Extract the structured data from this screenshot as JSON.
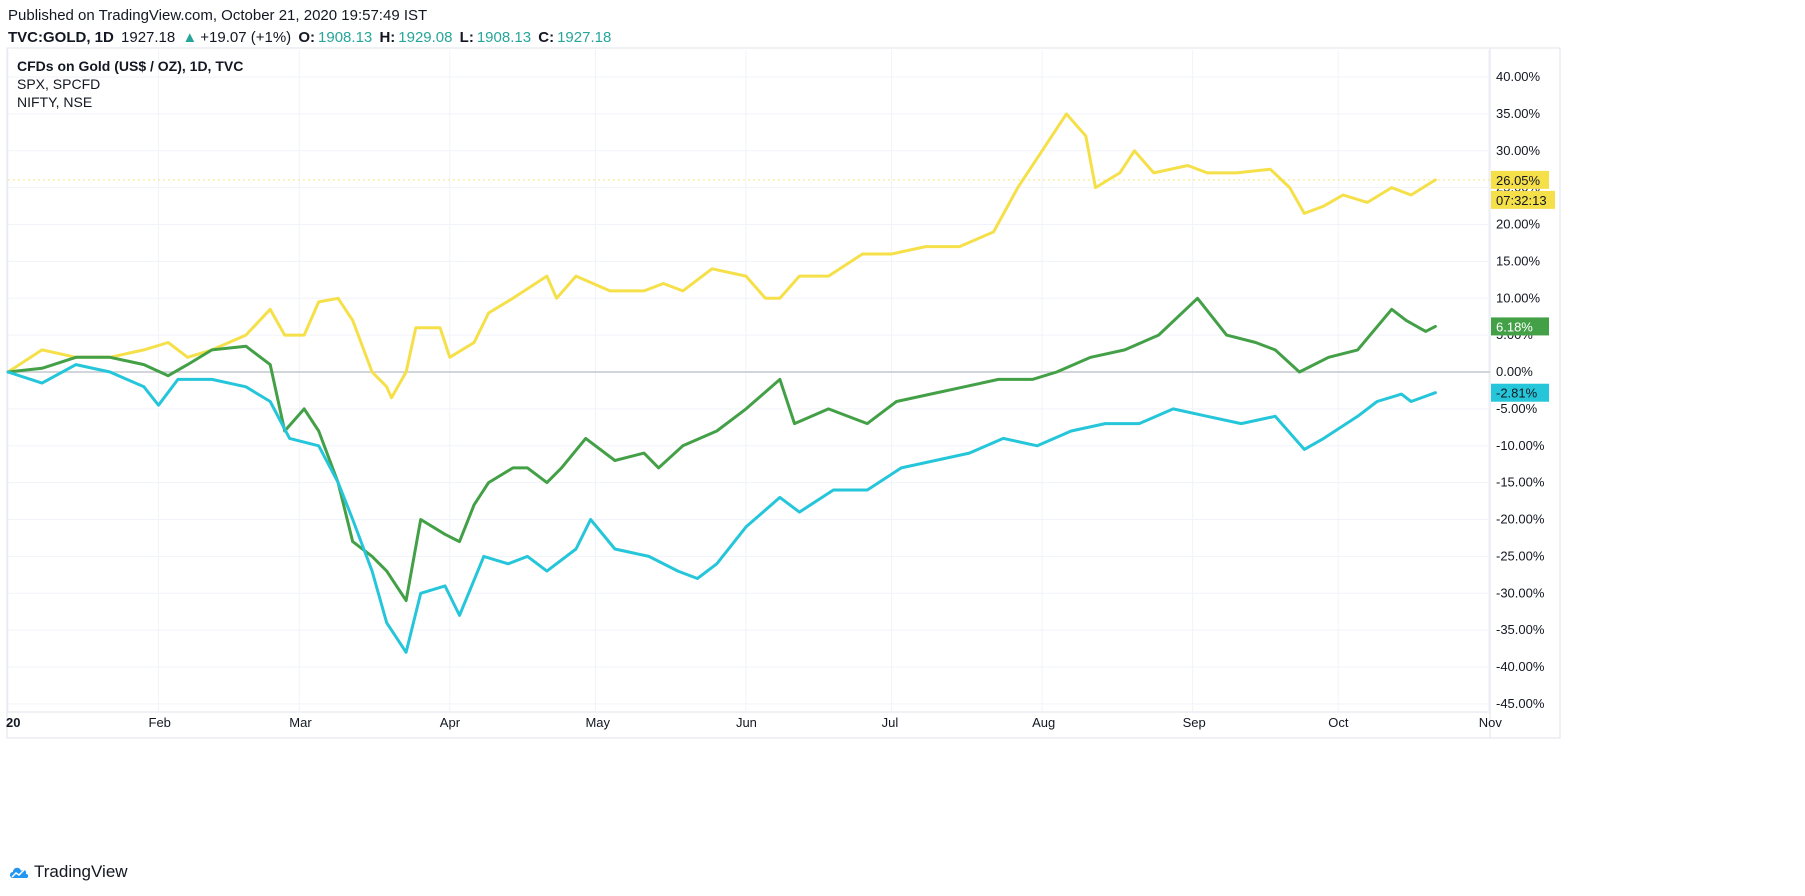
{
  "header": {
    "published": "Published on TradingView.com, October 21, 2020 19:57:49 IST",
    "symbol": "TVC:GOLD, 1D",
    "last": "1927.18",
    "change_arrow": "▲",
    "change": "+19.07 (+1%)",
    "o_label": "O:",
    "o_value": "1908.13",
    "h_label": "H:",
    "h_value": "1929.08",
    "l_label": "L:",
    "l_value": "1908.13",
    "c_label": "C:",
    "c_value": "1927.18"
  },
  "legend": {
    "main": "CFDs on Gold (US$ / OZ), 1D, TVC",
    "line2": "SPX, SPCFD",
    "line3": "NIFTY, NSE"
  },
  "footer": {
    "brand": "TradingView"
  },
  "colors": {
    "gold": "#f5e04a",
    "spx": "#43a047",
    "nifty": "#26c6da",
    "grid": "#f0f3fa",
    "zero": "#c4c8d1",
    "axis_text": "#131722"
  },
  "chart_data": {
    "type": "line",
    "y_unit": "%",
    "ylim": [
      -45,
      40
    ],
    "y_ticks": [
      "40.00%",
      "35.00%",
      "30.00%",
      "25.00%",
      "20.00%",
      "15.00%",
      "10.00%",
      "5.00%",
      "0.00%",
      "-5.00%",
      "-10.00%",
      "-15.00%",
      "-20.00%",
      "-25.00%",
      "-30.00%",
      "-35.00%",
      "-40.00%",
      "-45.00%"
    ],
    "x_ticks": [
      "20",
      "Feb",
      "Mar",
      "Apr",
      "May",
      "Jun",
      "Jul",
      "Aug",
      "Sep",
      "Oct",
      "Nov"
    ],
    "grid": true,
    "series": [
      {
        "name": "CFDs on Gold (US$ / OZ), 1D, TVC",
        "color": "#f5e04a",
        "last_label": "26.05%",
        "countdown": "07:32:13",
        "points": [
          [
            "2020-01-01",
            0
          ],
          [
            "2020-01-08",
            3
          ],
          [
            "2020-01-15",
            2
          ],
          [
            "2020-01-22",
            2
          ],
          [
            "2020-01-29",
            3
          ],
          [
            "2020-02-03",
            4
          ],
          [
            "2020-02-07",
            2
          ],
          [
            "2020-02-12",
            3
          ],
          [
            "2020-02-19",
            5
          ],
          [
            "2020-02-24",
            8.5
          ],
          [
            "2020-02-27",
            5
          ],
          [
            "2020-03-02",
            5
          ],
          [
            "2020-03-05",
            9.5
          ],
          [
            "2020-03-09",
            10
          ],
          [
            "2020-03-12",
            7
          ],
          [
            "2020-03-16",
            0
          ],
          [
            "2020-03-19",
            -2
          ],
          [
            "2020-03-20",
            -3.5
          ],
          [
            "2020-03-23",
            0
          ],
          [
            "2020-03-25",
            6
          ],
          [
            "2020-03-30",
            6
          ],
          [
            "2020-04-01",
            2
          ],
          [
            "2020-04-06",
            4
          ],
          [
            "2020-04-09",
            8
          ],
          [
            "2020-04-14",
            10
          ],
          [
            "2020-04-21",
            13
          ],
          [
            "2020-04-23",
            10
          ],
          [
            "2020-04-27",
            13
          ],
          [
            "2020-05-04",
            11
          ],
          [
            "2020-05-11",
            11
          ],
          [
            "2020-05-15",
            12
          ],
          [
            "2020-05-19",
            11
          ],
          [
            "2020-05-25",
            14
          ],
          [
            "2020-06-01",
            13
          ],
          [
            "2020-06-05",
            10
          ],
          [
            "2020-06-08",
            10
          ],
          [
            "2020-06-12",
            13
          ],
          [
            "2020-06-18",
            13
          ],
          [
            "2020-06-25",
            16
          ],
          [
            "2020-07-01",
            16
          ],
          [
            "2020-07-08",
            17
          ],
          [
            "2020-07-15",
            17
          ],
          [
            "2020-07-22",
            19
          ],
          [
            "2020-07-27",
            25
          ],
          [
            "2020-07-31",
            29
          ],
          [
            "2020-08-06",
            35
          ],
          [
            "2020-08-10",
            32
          ],
          [
            "2020-08-12",
            25
          ],
          [
            "2020-08-17",
            27
          ],
          [
            "2020-08-20",
            30
          ],
          [
            "2020-08-24",
            27
          ],
          [
            "2020-08-31",
            28
          ],
          [
            "2020-09-04",
            27
          ],
          [
            "2020-09-10",
            27
          ],
          [
            "2020-09-17",
            27.5
          ],
          [
            "2020-09-21",
            25
          ],
          [
            "2020-09-24",
            21.5
          ],
          [
            "2020-09-28",
            22.5
          ],
          [
            "2020-10-02",
            24
          ],
          [
            "2020-10-07",
            23
          ],
          [
            "2020-10-12",
            25
          ],
          [
            "2020-10-16",
            24
          ],
          [
            "2020-10-21",
            26.05
          ]
        ]
      },
      {
        "name": "SPX, SPCFD",
        "color": "#43a047",
        "last_label": "6.18%",
        "points": [
          [
            "2020-01-01",
            0
          ],
          [
            "2020-01-08",
            0.5
          ],
          [
            "2020-01-15",
            2
          ],
          [
            "2020-01-22",
            2
          ],
          [
            "2020-01-29",
            1
          ],
          [
            "2020-02-03",
            -0.5
          ],
          [
            "2020-02-07",
            1
          ],
          [
            "2020-02-12",
            3
          ],
          [
            "2020-02-19",
            3.5
          ],
          [
            "2020-02-24",
            1
          ],
          [
            "2020-02-27",
            -8
          ],
          [
            "2020-03-02",
            -5
          ],
          [
            "2020-03-05",
            -8
          ],
          [
            "2020-03-09",
            -15
          ],
          [
            "2020-03-12",
            -23
          ],
          [
            "2020-03-16",
            -25
          ],
          [
            "2020-03-19",
            -27
          ],
          [
            "2020-03-23",
            -31
          ],
          [
            "2020-03-26",
            -20
          ],
          [
            "2020-03-31",
            -22
          ],
          [
            "2020-04-03",
            -23
          ],
          [
            "2020-04-06",
            -18
          ],
          [
            "2020-04-09",
            -15
          ],
          [
            "2020-04-14",
            -13
          ],
          [
            "2020-04-17",
            -13
          ],
          [
            "2020-04-21",
            -15
          ],
          [
            "2020-04-24",
            -13
          ],
          [
            "2020-04-29",
            -9
          ],
          [
            "2020-05-05",
            -12
          ],
          [
            "2020-05-11",
            -11
          ],
          [
            "2020-05-14",
            -13
          ],
          [
            "2020-05-19",
            -10
          ],
          [
            "2020-05-26",
            -8
          ],
          [
            "2020-06-01",
            -5
          ],
          [
            "2020-06-08",
            -1
          ],
          [
            "2020-06-11",
            -7
          ],
          [
            "2020-06-18",
            -5
          ],
          [
            "2020-06-26",
            -7
          ],
          [
            "2020-07-02",
            -4
          ],
          [
            "2020-07-09",
            -3
          ],
          [
            "2020-07-16",
            -2
          ],
          [
            "2020-07-23",
            -1
          ],
          [
            "2020-07-30",
            -1
          ],
          [
            "2020-08-04",
            0
          ],
          [
            "2020-08-11",
            2
          ],
          [
            "2020-08-18",
            3
          ],
          [
            "2020-08-25",
            5
          ],
          [
            "2020-09-02",
            10
          ],
          [
            "2020-09-08",
            5
          ],
          [
            "2020-09-14",
            4
          ],
          [
            "2020-09-18",
            3
          ],
          [
            "2020-09-23",
            0
          ],
          [
            "2020-09-29",
            2
          ],
          [
            "2020-10-05",
            3
          ],
          [
            "2020-10-12",
            8.5
          ],
          [
            "2020-10-15",
            7
          ],
          [
            "2020-10-19",
            5.5
          ],
          [
            "2020-10-21",
            6.18
          ]
        ]
      },
      {
        "name": "NIFTY, NSE",
        "color": "#26c6da",
        "last_label": "-2.81%",
        "points": [
          [
            "2020-01-01",
            0
          ],
          [
            "2020-01-08",
            -1.5
          ],
          [
            "2020-01-15",
            1
          ],
          [
            "2020-01-22",
            0
          ],
          [
            "2020-01-29",
            -2
          ],
          [
            "2020-02-01",
            -4.5
          ],
          [
            "2020-02-05",
            -1
          ],
          [
            "2020-02-12",
            -1
          ],
          [
            "2020-02-19",
            -2
          ],
          [
            "2020-02-24",
            -4
          ],
          [
            "2020-02-28",
            -9
          ],
          [
            "2020-03-05",
            -10
          ],
          [
            "2020-03-09",
            -15
          ],
          [
            "2020-03-12",
            -20
          ],
          [
            "2020-03-16",
            -27
          ],
          [
            "2020-03-19",
            -34
          ],
          [
            "2020-03-23",
            -38
          ],
          [
            "2020-03-26",
            -30
          ],
          [
            "2020-03-31",
            -29
          ],
          [
            "2020-04-03",
            -33
          ],
          [
            "2020-04-08",
            -25
          ],
          [
            "2020-04-13",
            -26
          ],
          [
            "2020-04-17",
            -25
          ],
          [
            "2020-04-21",
            -27
          ],
          [
            "2020-04-27",
            -24
          ],
          [
            "2020-04-30",
            -20
          ],
          [
            "2020-05-05",
            -24
          ],
          [
            "2020-05-12",
            -25
          ],
          [
            "2020-05-18",
            -27
          ],
          [
            "2020-05-22",
            -28
          ],
          [
            "2020-05-26",
            -26
          ],
          [
            "2020-06-01",
            -21
          ],
          [
            "2020-06-08",
            -17
          ],
          [
            "2020-06-12",
            -19
          ],
          [
            "2020-06-19",
            -16
          ],
          [
            "2020-06-26",
            -16
          ],
          [
            "2020-07-03",
            -13
          ],
          [
            "2020-07-10",
            -12
          ],
          [
            "2020-07-17",
            -11
          ],
          [
            "2020-07-24",
            -9
          ],
          [
            "2020-07-31",
            -10
          ],
          [
            "2020-08-07",
            -8
          ],
          [
            "2020-08-14",
            -7
          ],
          [
            "2020-08-21",
            -7
          ],
          [
            "2020-08-28",
            -5
          ],
          [
            "2020-09-04",
            -6
          ],
          [
            "2020-09-11",
            -7
          ],
          [
            "2020-09-18",
            -6
          ],
          [
            "2020-09-24",
            -10.5
          ],
          [
            "2020-09-28",
            -9
          ],
          [
            "2020-10-05",
            -6
          ],
          [
            "2020-10-09",
            -4
          ],
          [
            "2020-10-14",
            -3
          ],
          [
            "2020-10-16",
            -4
          ],
          [
            "2020-10-21",
            -2.81
          ]
        ]
      }
    ]
  }
}
